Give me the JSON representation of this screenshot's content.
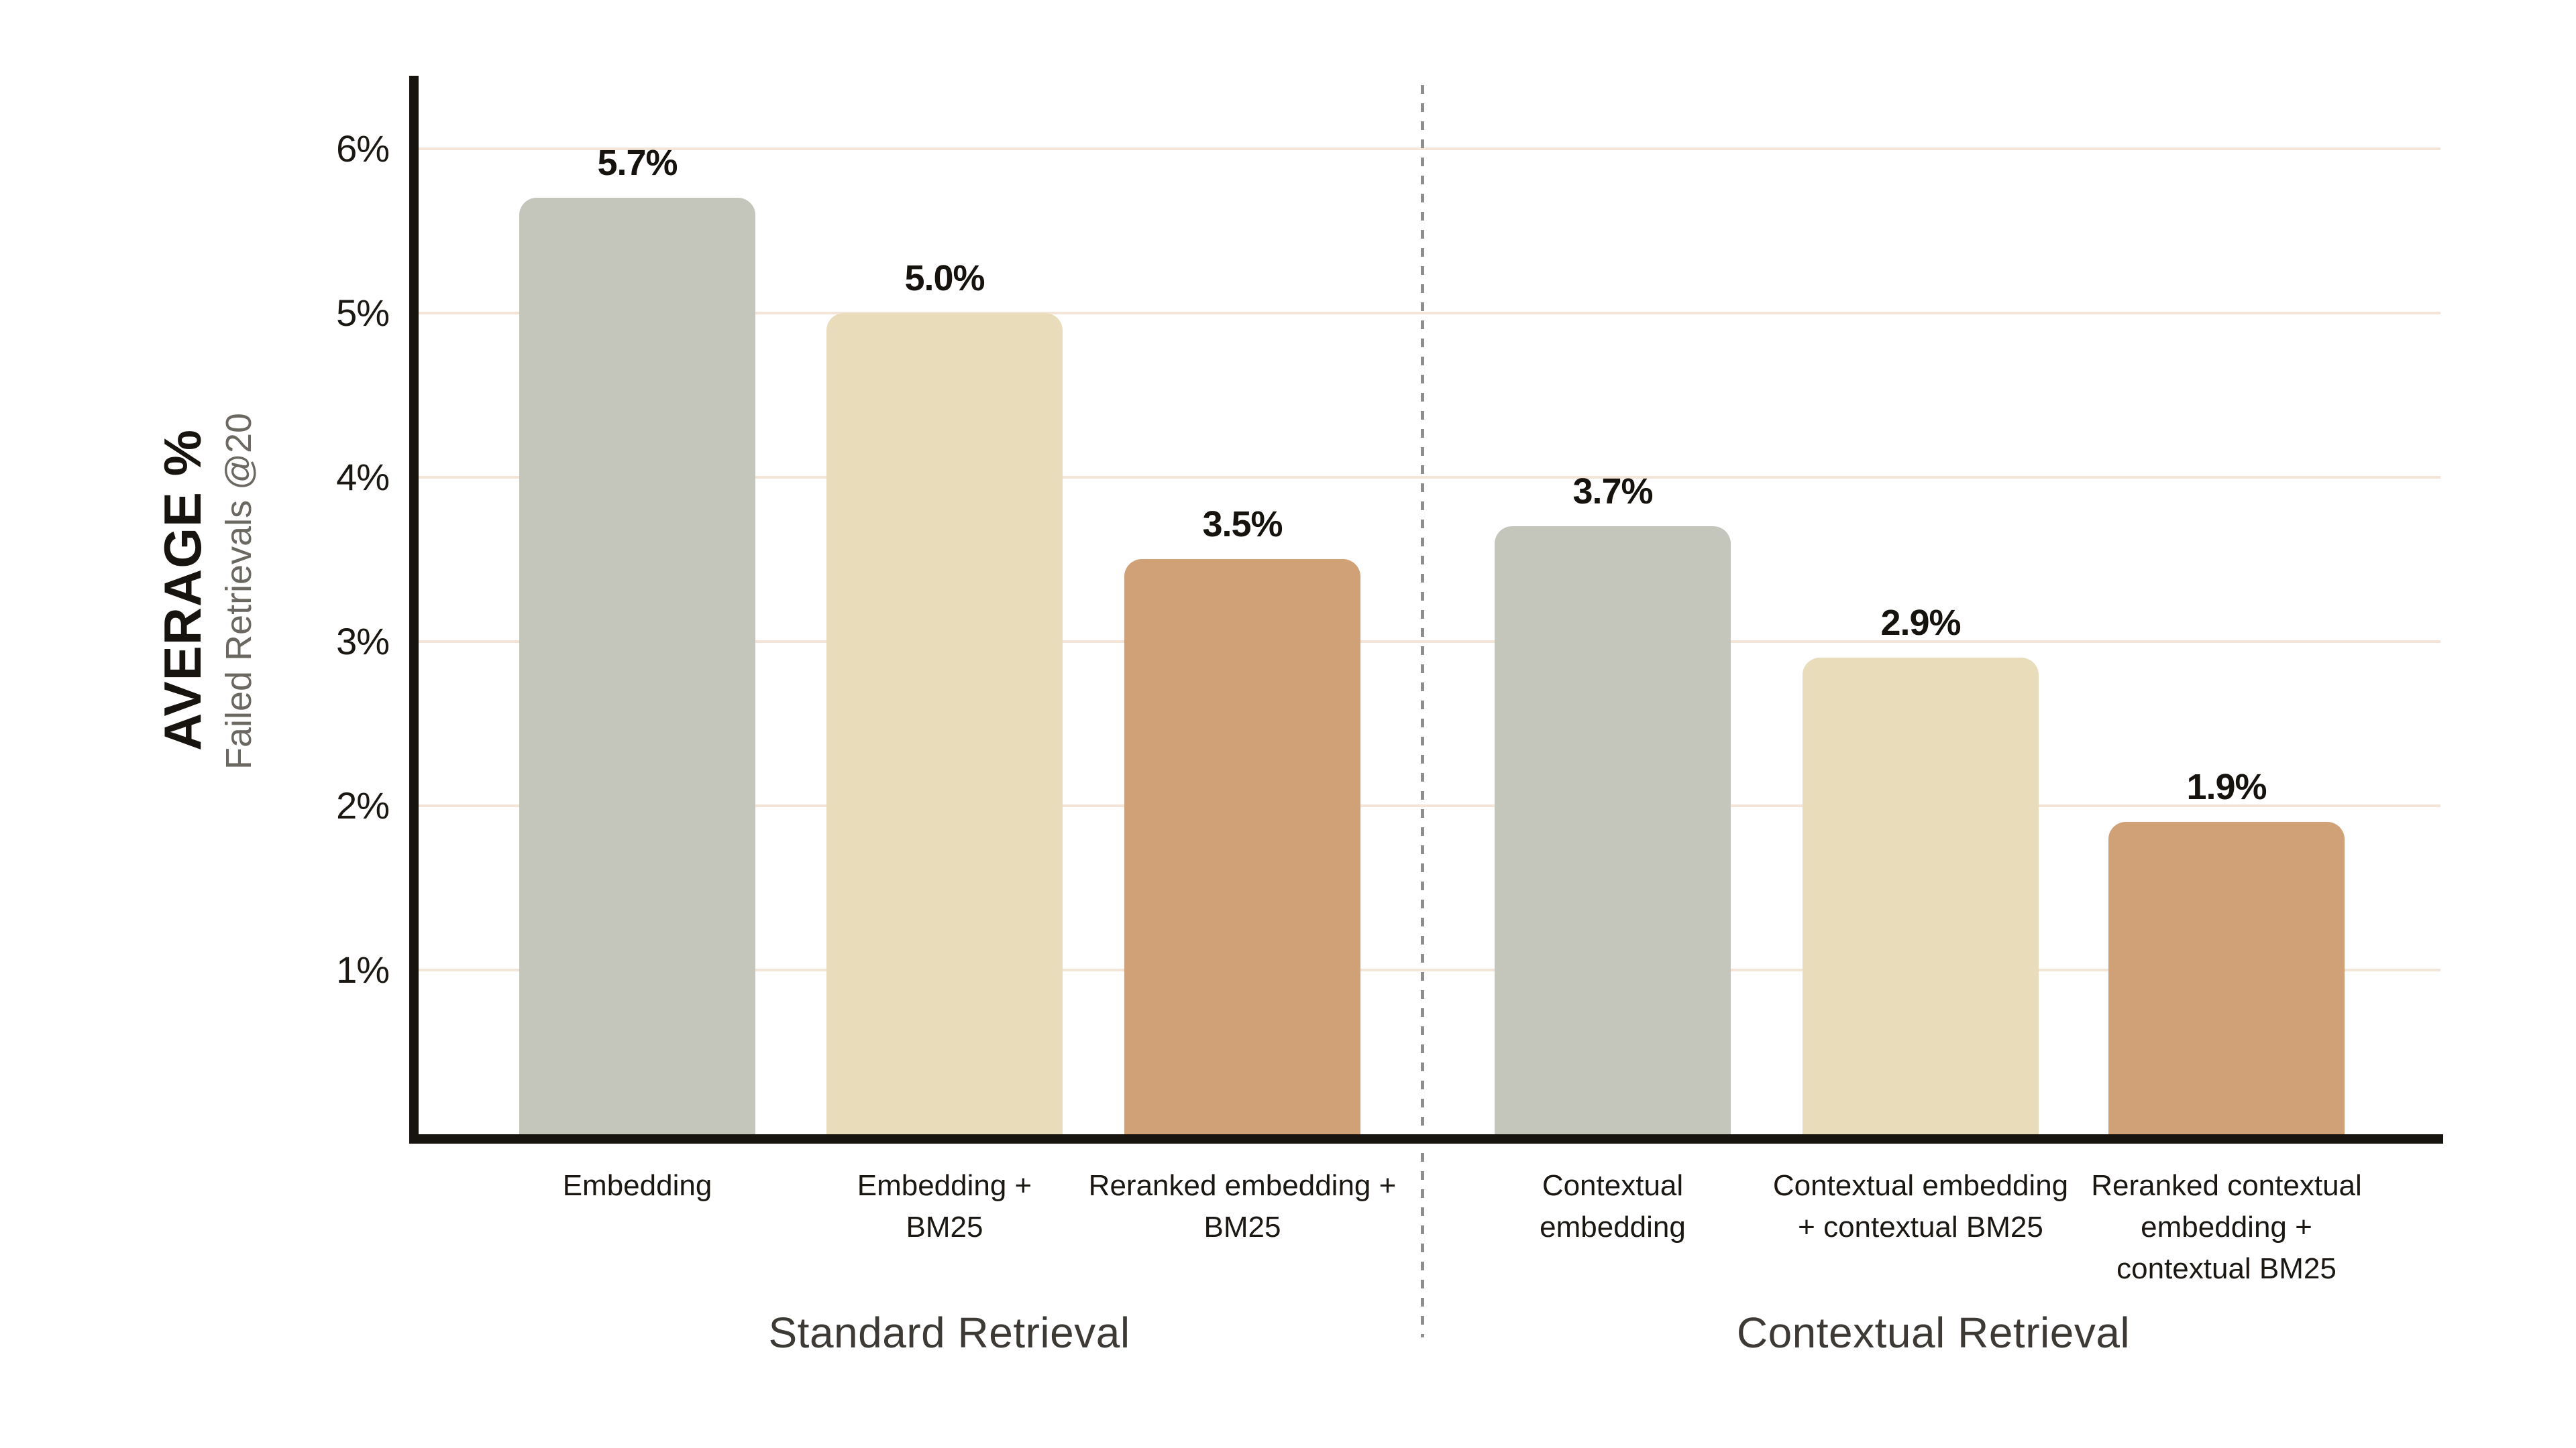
{
  "chart_data": {
    "type": "bar",
    "title": "",
    "y_axis": {
      "label_primary": "AVERAGE %",
      "label_secondary": "Failed Retrievals @20",
      "ticks": [
        "6%",
        "5%",
        "4%",
        "3%",
        "2%",
        "1%"
      ],
      "tick_values": [
        6,
        5,
        4,
        3,
        2,
        1
      ],
      "unit": "%",
      "range": [
        0,
        6.45
      ],
      "grid": "on"
    },
    "sections": [
      {
        "label": "Standard Retrieval"
      },
      {
        "label": "Contextual Retrieval"
      }
    ],
    "divider_style": "dashed-vertical",
    "bars": [
      {
        "category": "Embedding",
        "display_category": "Embedding",
        "value": 5.7,
        "display_value": "5.7%",
        "color": "#c4c5bb",
        "section": 0
      },
      {
        "category": "Embedding + BM25",
        "display_category": "Embedding +\nBM25",
        "value": 5.0,
        "display_value": "5.0%",
        "color": "#e9dcba",
        "section": 0
      },
      {
        "category": "Reranked embedding + BM25",
        "display_category": "Reranked embedding +\nBM25",
        "value": 3.5,
        "display_value": "3.5%",
        "color": "#d0a077",
        "section": 0
      },
      {
        "category": "Contextual embedding",
        "display_category": "Contextual\nembedding",
        "value": 3.7,
        "display_value": "3.7%",
        "color": "#c4c5bb",
        "section": 1
      },
      {
        "category": "Contextual embedding + contextual BM25",
        "display_category": "Contextual embedding\n+ contextual BM25",
        "value": 2.9,
        "display_value": "2.9%",
        "color": "#e9dcba",
        "section": 1
      },
      {
        "category": "Reranked contextual embedding + contextual BM25",
        "display_category": "Reranked contextual\nembedding +\ncontextual BM25",
        "value": 1.9,
        "display_value": "1.9%",
        "color": "#d0a077",
        "section": 1
      }
    ],
    "style_colors": {
      "bar_gray": "#c4c5bb",
      "bar_cream": "#e9dcba",
      "bar_terracotta": "#d0a077",
      "gridline": "#f3e6d8",
      "axis": "#17130e",
      "divider": "#8e8e8c",
      "background": "#ffffff"
    }
  }
}
